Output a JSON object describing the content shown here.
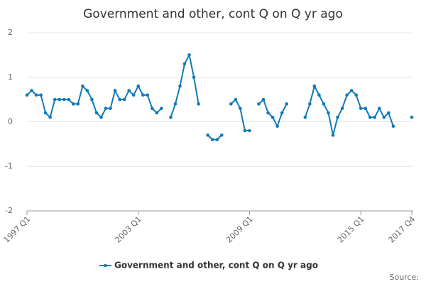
{
  "chart_data": {
    "type": "line",
    "title": "Government and other, cont Q on Q yr ago",
    "categories": [
      "1997 Q1",
      null,
      null,
      null,
      null,
      null,
      null,
      null,
      null,
      null,
      null,
      null,
      null,
      null,
      null,
      null,
      null,
      null,
      null,
      null,
      null,
      null,
      null,
      null,
      "2003 Q1",
      null,
      null,
      null,
      null,
      null,
      null,
      null,
      null,
      null,
      null,
      null,
      null,
      null,
      null,
      null,
      null,
      null,
      null,
      null,
      null,
      null,
      null,
      null,
      "2009 Q1",
      null,
      null,
      null,
      null,
      null,
      null,
      null,
      null,
      null,
      null,
      null,
      null,
      null,
      null,
      null,
      null,
      null,
      null,
      null,
      null,
      null,
      null,
      null,
      "2015 Q1",
      null,
      null,
      null,
      null,
      null,
      null,
      null,
      null,
      null,
      null,
      "2017 Q4"
    ],
    "series": [
      {
        "name": "Government and other, cont Q on Q yr ago",
        "color": "#0f7ab8",
        "values": [
          0.6,
          0.7,
          0.6,
          0.6,
          0.2,
          0.1,
          0.5,
          0.5,
          0.5,
          0.5,
          0.4,
          0.4,
          0.8,
          0.7,
          0.5,
          0.2,
          0.1,
          0.3,
          0.3,
          0.7,
          0.5,
          0.5,
          0.7,
          0.6,
          0.8,
          0.6,
          0.6,
          0.3,
          0.2,
          0.3,
          null,
          0.1,
          0.4,
          0.8,
          1.3,
          1.5,
          1.0,
          0.4,
          null,
          -0.3,
          -0.4,
          -0.4,
          -0.3,
          null,
          0.4,
          0.5,
          0.3,
          -0.2,
          -0.2,
          null,
          0.4,
          0.5,
          0.2,
          0.1,
          -0.1,
          0.2,
          0.4,
          null,
          null,
          null,
          0.1,
          0.4,
          0.8,
          0.6,
          0.4,
          0.2,
          -0.3,
          0.1,
          0.3,
          0.6,
          0.7,
          0.6,
          0.3,
          0.3,
          0.1,
          0.1,
          0.3,
          0.1,
          0.2,
          -0.1,
          null,
          null,
          null,
          0.1
        ]
      }
    ],
    "ylim": [
      -2,
      2
    ],
    "yticks": [
      -2,
      -1,
      0,
      1,
      2
    ],
    "grid": true,
    "legend": "bottom",
    "source": "Source:"
  }
}
